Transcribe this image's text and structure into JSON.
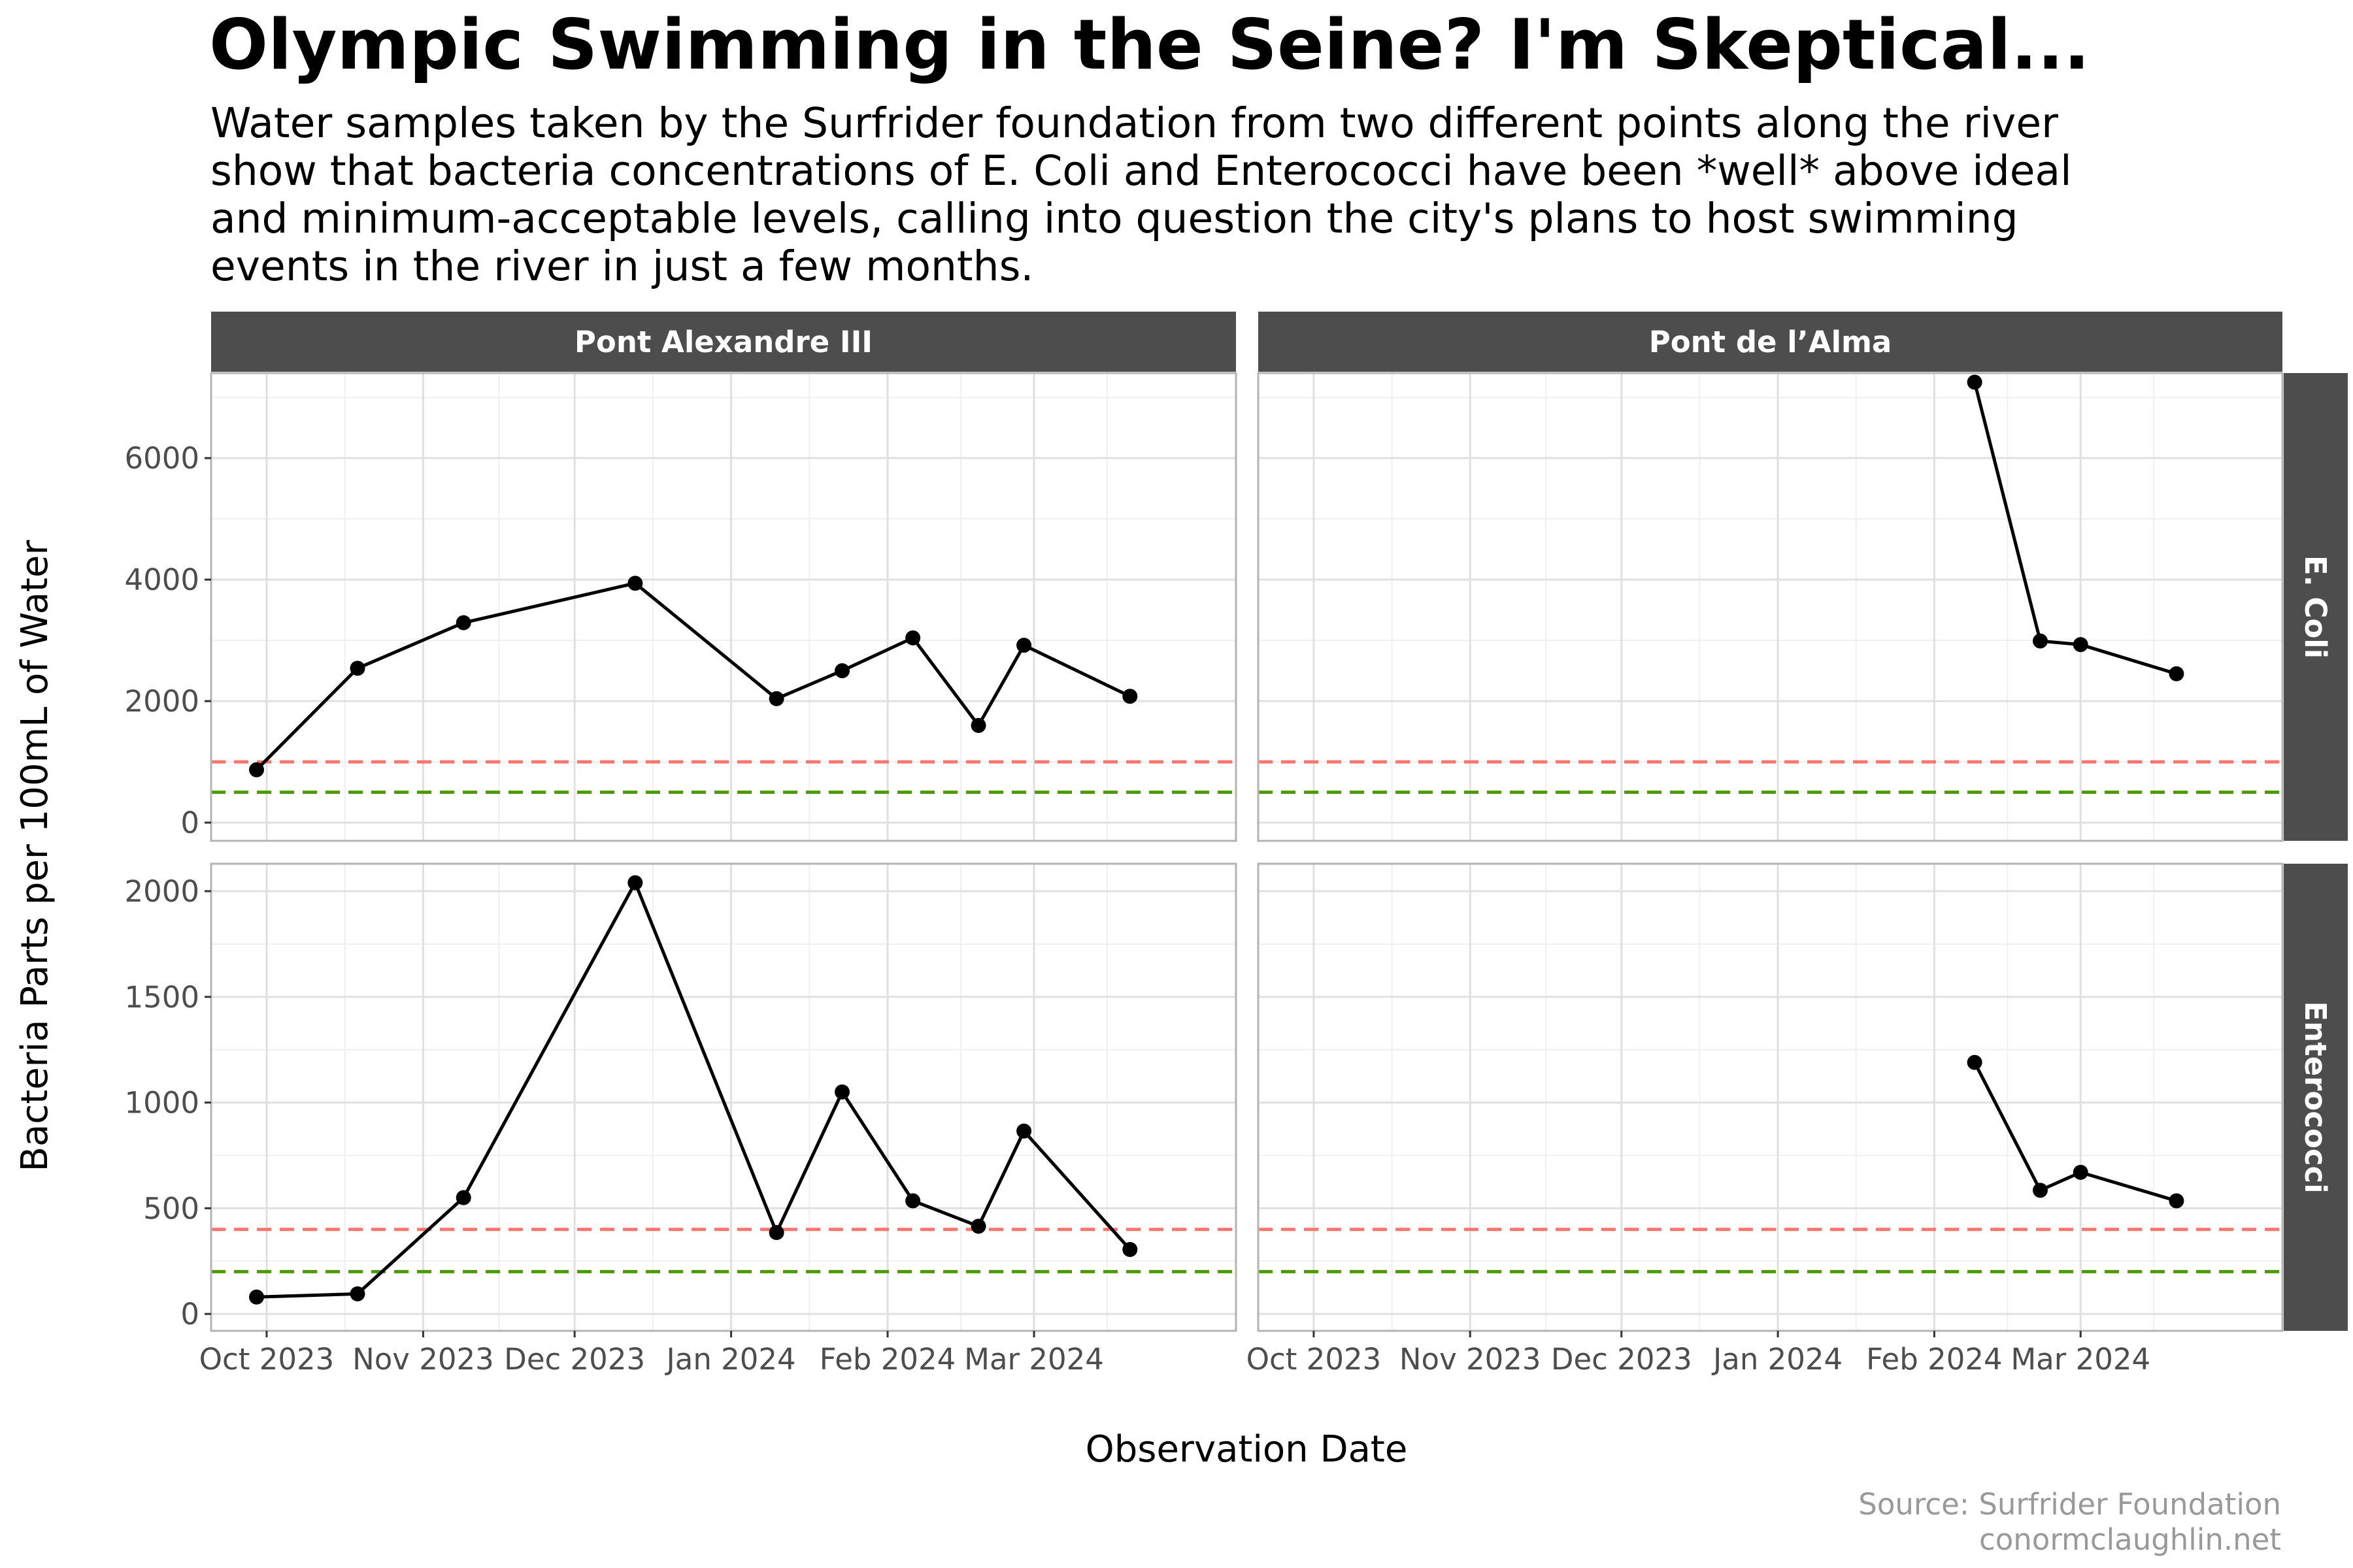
{
  "title": "Olympic Swimming in the Seine? I'm Skeptical...",
  "subtitle_lines": [
    "Water samples taken by the Surfrider foundation from two different points along the river",
    "show that bacteria concentrations of E. Coli and Enterococci have been *well* above ideal",
    "and minimum-acceptable levels, calling into question the city's plans to host swimming",
    "events in the river in just a few months."
  ],
  "caption_lines": [
    "Source: Surfrider Foundation",
    "conormclaughlin.net"
  ],
  "colors": {
    "line": "#000000",
    "point": "#000000",
    "threshold_acceptable": "#f8766d",
    "threshold_ideal": "#4d9a00",
    "strip_bg": "#4d4d4d",
    "grid_major": "#e0e0e0",
    "grid_minor": "#f0f0f0",
    "panel_border": "#b3b3b3"
  },
  "chart_data": {
    "type": "line",
    "xlabel": "Observation Date",
    "ylabel": "Bacteria Parts per 100mL of Water",
    "facet_columns": [
      "Pont Alexandre III",
      "Pont de l’Alma"
    ],
    "facet_rows": [
      "E. Coli",
      "Enterococci"
    ],
    "x_ticks": [
      {
        "date": "2023-10-01",
        "label": "Oct 2023"
      },
      {
        "date": "2023-11-01",
        "label": "Nov 2023"
      },
      {
        "date": "2023-12-01",
        "label": "Dec 2023"
      },
      {
        "date": "2024-01-01",
        "label": "Jan 2024"
      },
      {
        "date": "2024-02-01",
        "label": "Feb 2024"
      },
      {
        "date": "2024-03-01",
        "label": "Mar 2024"
      }
    ],
    "xlim": [
      "2023-09-20",
      "2024-04-10"
    ],
    "rows": [
      {
        "name": "E. Coli",
        "ylim": [
          -300,
          7400
        ],
        "y_ticks": [
          0,
          2000,
          4000,
          6000
        ],
        "thresholds": [
          {
            "value": 1000,
            "kind": "acceptable"
          },
          {
            "value": 500,
            "kind": "ideal"
          }
        ]
      },
      {
        "name": "Enterococci",
        "ylim": [
          -80,
          2130
        ],
        "y_ticks": [
          0,
          500,
          1000,
          1500,
          2000
        ],
        "thresholds": [
          {
            "value": 400,
            "kind": "acceptable"
          },
          {
            "value": 200,
            "kind": "ideal"
          }
        ]
      }
    ],
    "panels": [
      {
        "column": "Pont Alexandre III",
        "row": "E. Coli",
        "points": [
          {
            "x": "2023-09-29",
            "y": 870
          },
          {
            "x": "2023-10-19",
            "y": 2540
          },
          {
            "x": "2023-11-09",
            "y": 3290
          },
          {
            "x": "2023-12-13",
            "y": 3940
          },
          {
            "x": "2024-01-10",
            "y": 2040
          },
          {
            "x": "2024-01-23",
            "y": 2500
          },
          {
            "x": "2024-02-06",
            "y": 3040
          },
          {
            "x": "2024-02-19",
            "y": 1600
          },
          {
            "x": "2024-02-28",
            "y": 2920
          },
          {
            "x": "2024-03-20",
            "y": 2080
          }
        ]
      },
      {
        "column": "Pont de l’Alma",
        "row": "E. Coli",
        "points": [
          {
            "x": "2024-02-09",
            "y": 7250
          },
          {
            "x": "2024-02-22",
            "y": 2990
          },
          {
            "x": "2024-03-01",
            "y": 2930
          },
          {
            "x": "2024-03-20",
            "y": 2450
          }
        ]
      },
      {
        "column": "Pont Alexandre III",
        "row": "Enterococci",
        "points": [
          {
            "x": "2023-09-29",
            "y": 80
          },
          {
            "x": "2023-10-19",
            "y": 95
          },
          {
            "x": "2023-11-09",
            "y": 550
          },
          {
            "x": "2023-12-13",
            "y": 2040
          },
          {
            "x": "2024-01-10",
            "y": 385
          },
          {
            "x": "2024-01-23",
            "y": 1050
          },
          {
            "x": "2024-02-06",
            "y": 535
          },
          {
            "x": "2024-02-19",
            "y": 415
          },
          {
            "x": "2024-02-28",
            "y": 865
          },
          {
            "x": "2024-03-20",
            "y": 305
          }
        ]
      },
      {
        "column": "Pont de l’Alma",
        "row": "Enterococci",
        "points": [
          {
            "x": "2024-02-09",
            "y": 1190
          },
          {
            "x": "2024-02-22",
            "y": 585
          },
          {
            "x": "2024-03-01",
            "y": 670
          },
          {
            "x": "2024-03-20",
            "y": 535
          }
        ]
      }
    ]
  }
}
